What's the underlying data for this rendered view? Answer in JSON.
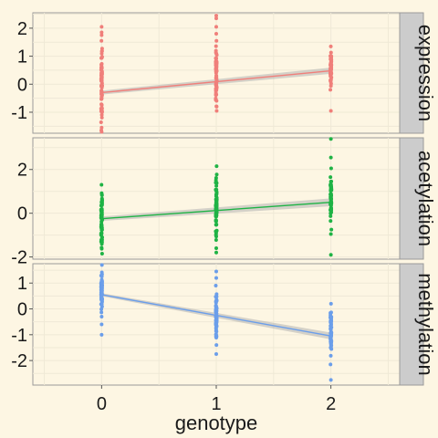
{
  "colors": {
    "background": "#fdf6e3",
    "panel_background": "#fdf6e3",
    "grid": "#efe9d6",
    "panel_border": "#9a9a9a",
    "strip_background": "#cccccc",
    "ribbon": "#b3b3b3",
    "expression": "#f07f7a",
    "acetylation": "#1fb345",
    "methylation": "#6b9eea"
  },
  "chart_data": {
    "type": "scatter",
    "xlabel": "genotype",
    "x_categories": [
      "0",
      "1",
      "2"
    ],
    "x_values": [
      0,
      1,
      2
    ],
    "xlim": [
      -0.6,
      2.6
    ],
    "grid": true,
    "facets": [
      {
        "name": "expression",
        "color_key": "expression",
        "ylim": [
          -1.75,
          2.55
        ],
        "yticks": [
          -1,
          0,
          1,
          2
        ],
        "ytick_labels": [
          "-1",
          "0",
          "1",
          "2"
        ],
        "trend": {
          "x": [
            0,
            2
          ],
          "y": [
            -0.3,
            0.48
          ],
          "band_halfwidth": [
            0.07,
            0.11
          ]
        },
        "points": [
          {
            "x": 0,
            "range": [
              -1.65,
              1.55
            ],
            "n": 70,
            "outliers": [
              2.05,
              1.85,
              1.75,
              -1.55,
              -1.7
            ]
          },
          {
            "x": 1,
            "range": [
              -0.95,
              1.55
            ],
            "n": 70,
            "outliers": [
              2.45,
              2.35,
              2.05,
              1.8
            ]
          },
          {
            "x": 2,
            "range": [
              -0.2,
              1.35
            ],
            "n": 60,
            "outliers": [
              -0.95
            ]
          }
        ]
      },
      {
        "name": "acetylation",
        "color_key": "acetylation",
        "ylim": [
          -2.1,
          3.45
        ],
        "yticks": [
          -2,
          0,
          2
        ],
        "ytick_labels": [
          "-2",
          "0",
          "2"
        ],
        "trend": {
          "x": [
            0,
            2
          ],
          "y": [
            -0.25,
            0.5
          ],
          "band_halfwidth": [
            0.1,
            0.18
          ]
        },
        "points": [
          {
            "x": 0,
            "range": [
              -1.85,
              1.3
            ],
            "n": 80,
            "outliers": []
          },
          {
            "x": 1,
            "range": [
              -1.6,
              2.15
            ],
            "n": 80,
            "outliers": [
              -1.8
            ]
          },
          {
            "x": 2,
            "range": [
              -0.75,
              2.05
            ],
            "n": 60,
            "outliers": [
              3.4,
              2.55,
              -0.95,
              -1.9
            ]
          }
        ]
      },
      {
        "name": "methylation",
        "color_key": "methylation",
        "ylim": [
          -2.95,
          1.75
        ],
        "yticks": [
          -2,
          -1,
          0,
          1
        ],
        "ytick_labels": [
          "-2",
          "-1",
          "0",
          "1"
        ],
        "trend": {
          "x": [
            0,
            2
          ],
          "y": [
            0.55,
            -1.05
          ],
          "band_halfwidth": [
            0.06,
            0.13
          ]
        },
        "points": [
          {
            "x": 0,
            "range": [
              -0.3,
              1.7
            ],
            "n": 70,
            "outliers": [
              -0.6,
              -1.0
            ]
          },
          {
            "x": 1,
            "range": [
              -1.4,
              0.9
            ],
            "n": 70,
            "outliers": [
              1.45,
              1.2,
              -1.75
            ]
          },
          {
            "x": 2,
            "range": [
              -2.15,
              0.2
            ],
            "n": 60,
            "outliers": [
              -2.75
            ]
          }
        ]
      }
    ]
  }
}
